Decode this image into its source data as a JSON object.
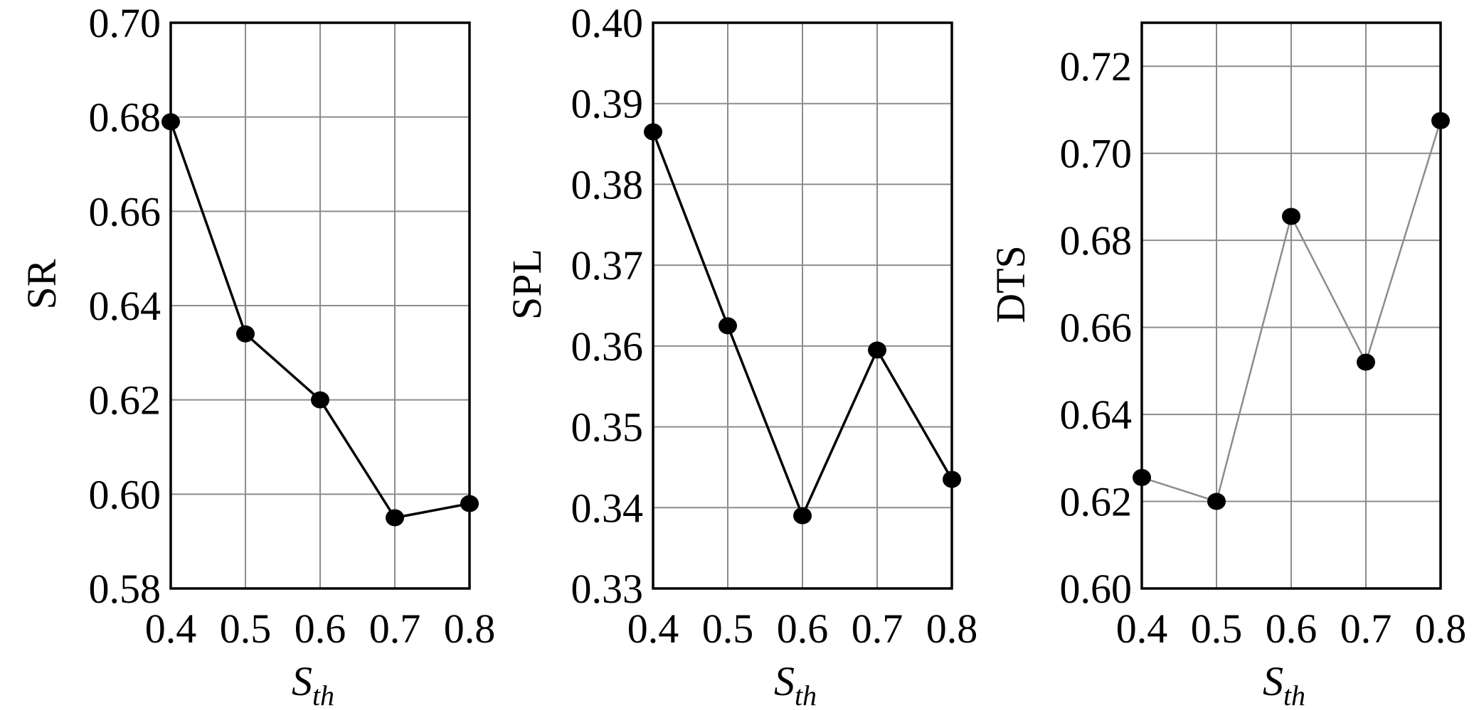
{
  "chart_data": [
    {
      "type": "line",
      "xlabel": "S",
      "xlabel_sub": "th",
      "ylabel": "SR",
      "x": [
        0.4,
        0.5,
        0.6,
        0.7,
        0.8
      ],
      "xlim": [
        0.4,
        0.8
      ],
      "ylim": [
        0.58,
        0.7
      ],
      "x_ticks": [
        "0.4",
        "0.5",
        "0.6",
        "0.7",
        "0.8"
      ],
      "y_ticks": [
        "0.58",
        "0.60",
        "0.62",
        "0.64",
        "0.66",
        "0.68",
        "0.70"
      ],
      "grid": true,
      "line_color": "#000000",
      "marker_color": "#000000",
      "series": [
        {
          "values": [
            0.679,
            0.634,
            0.62,
            0.595,
            0.598
          ]
        }
      ]
    },
    {
      "type": "line",
      "xlabel": "S",
      "xlabel_sub": "th",
      "ylabel": "SPL",
      "x": [
        0.4,
        0.5,
        0.6,
        0.7,
        0.8
      ],
      "xlim": [
        0.4,
        0.8
      ],
      "ylim": [
        0.33,
        0.4
      ],
      "x_ticks": [
        "0.4",
        "0.5",
        "0.6",
        "0.7",
        "0.8"
      ],
      "y_ticks": [
        "0.33",
        "0.34",
        "0.35",
        "0.36",
        "0.37",
        "0.38",
        "0.39",
        "0.40"
      ],
      "grid": true,
      "line_color": "#000000",
      "marker_color": "#000000",
      "series": [
        {
          "values": [
            0.3865,
            0.3625,
            0.339,
            0.3595,
            0.3435
          ]
        }
      ]
    },
    {
      "type": "line",
      "xlabel": "S",
      "xlabel_sub": "th",
      "ylabel": "DTS",
      "x": [
        0.4,
        0.5,
        0.6,
        0.7,
        0.8
      ],
      "xlim": [
        0.4,
        0.8
      ],
      "ylim": [
        0.6,
        0.73
      ],
      "x_ticks": [
        "0.4",
        "0.5",
        "0.6",
        "0.7",
        "0.8"
      ],
      "y_ticks": [
        "0.60",
        "0.62",
        "0.64",
        "0.66",
        "0.68",
        "0.70",
        "0.72"
      ],
      "grid": true,
      "line_color": "#8c8c8c",
      "marker_color": "#000000",
      "series": [
        {
          "values": [
            0.6255,
            0.62,
            0.6855,
            0.652,
            0.7075
          ]
        }
      ]
    }
  ]
}
